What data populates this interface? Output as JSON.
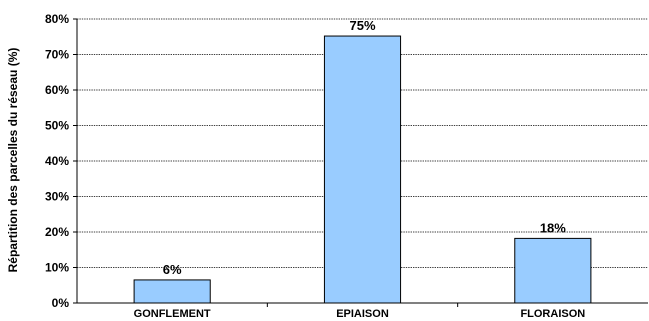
{
  "chart_data": {
    "type": "bar",
    "categories": [
      "GONFLEMENT",
      "EPIAISON",
      "FLORAISON"
    ],
    "values": [
      6.5,
      75.2,
      18.2
    ],
    "data_labels": [
      "6%",
      "75%",
      "18%"
    ],
    "ylabel": "Répartition des parcelles du réseau (%)",
    "xlabel": "",
    "title": "",
    "ylim": [
      0,
      80
    ],
    "ytick_values": [
      0,
      10,
      20,
      30,
      40,
      50,
      60,
      70,
      80
    ],
    "ytick_labels": [
      "0%",
      "10%",
      "20%",
      "30%",
      "40%",
      "50%",
      "60%",
      "70%",
      "80%"
    ],
    "grid": true,
    "legend": "none",
    "bar_color": "#99ccff"
  }
}
